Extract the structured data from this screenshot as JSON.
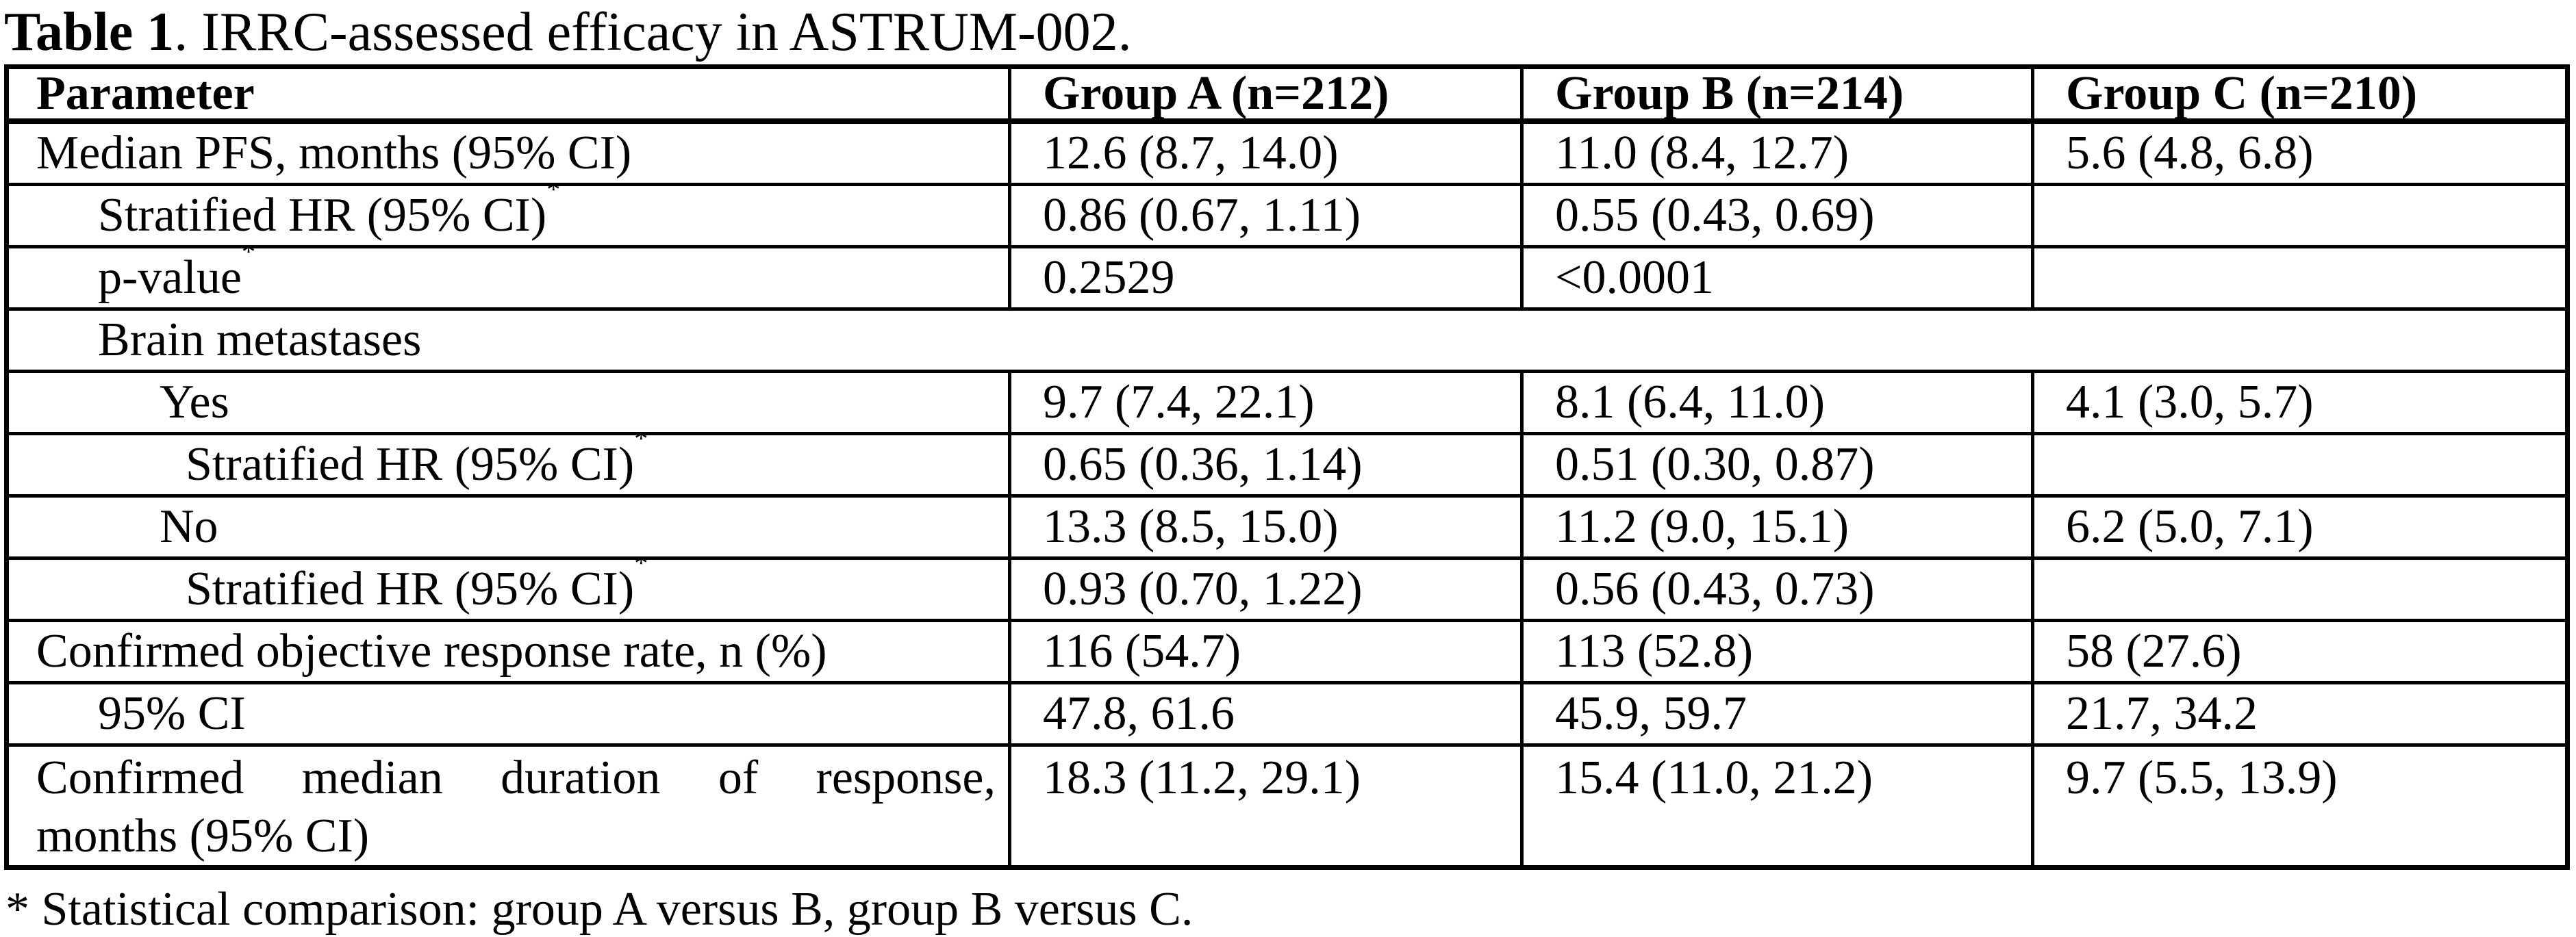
{
  "caption": {
    "label": "Table 1",
    "rest": ". IRRC-assessed efficacy in ASTRUM-002."
  },
  "table": {
    "columns": [
      "Parameter",
      "Group A (n=212)",
      "Group B (n=214)",
      "Group C (n=210)"
    ],
    "sup_marker": "*",
    "rows": [
      {
        "param": "Median PFS, months (95% CI)",
        "indent": 0,
        "values": [
          "12.6 (8.7, 14.0)",
          "11.0 (8.4, 12.7)",
          "5.6 (4.8, 6.8)"
        ]
      },
      {
        "param": "Stratified HR (95% CI)",
        "sup": true,
        "indent": 1,
        "values": [
          "0.86 (0.67, 1.11)",
          "0.55 (0.43, 0.69)",
          ""
        ]
      },
      {
        "param": "p-value",
        "sup": true,
        "indent": 1,
        "values": [
          "0.2529",
          "<0.0001",
          ""
        ]
      },
      {
        "param": "Brain metastases",
        "indent": 1,
        "colspan": 4,
        "values": []
      },
      {
        "param": "Yes",
        "indent": 2,
        "values": [
          "9.7 (7.4, 22.1)",
          "8.1 (6.4, 11.0)",
          "4.1 (3.0, 5.7)"
        ]
      },
      {
        "param": "Stratified HR (95% CI)",
        "sup": true,
        "indent": 3,
        "values": [
          "0.65 (0.36, 1.14)",
          "0.51 (0.30, 0.87)",
          ""
        ]
      },
      {
        "param": "No",
        "indent": 2,
        "values": [
          "13.3 (8.5, 15.0)",
          "11.2 (9.0, 15.1)",
          "6.2 (5.0, 7.1)"
        ]
      },
      {
        "param": "Stratified HR (95% CI)",
        "sup": true,
        "indent": 3,
        "values": [
          "0.93 (0.70, 1.22)",
          "0.56 (0.43, 0.73)",
          ""
        ]
      },
      {
        "param": "Confirmed objective response rate, n (%)",
        "indent": 0,
        "values": [
          "116 (54.7)",
          "113 (52.8)",
          "58 (27.6)"
        ]
      },
      {
        "param": "95% CI",
        "indent": 1,
        "values": [
          "47.8, 61.6",
          "45.9, 59.7",
          "21.7, 34.2"
        ]
      },
      {
        "param_lines": [
          "Confirmed median duration of response,",
          "months (95% CI)"
        ],
        "indent": 0,
        "tall": true,
        "values": [
          "18.3 (11.2, 29.1)",
          "15.4 (11.0, 21.2)",
          "9.7 (5.5, 13.9)"
        ]
      }
    ]
  },
  "footnote": "* Statistical comparison: group A versus B, group B versus C."
}
